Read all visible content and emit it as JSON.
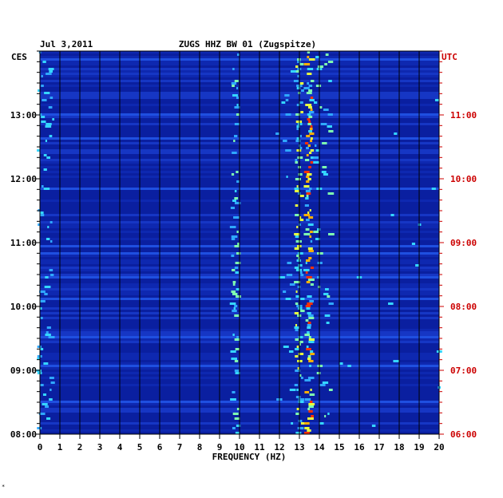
{
  "chart_data": {
    "type": "heatmap",
    "title_date": "Jul 3,2011",
    "title_station": "ZUGS HHZ BW 01 (Zugspitze)",
    "left_axis_label": "CES",
    "right_axis_label": "UTC",
    "xlabel": "FREQUENCY (HZ)",
    "xlim": [
      0,
      20
    ],
    "x_ticks": [
      "0",
      "1",
      "2",
      "3",
      "4",
      "5",
      "6",
      "7",
      "8",
      "9",
      "10",
      "11",
      "12",
      "13",
      "14",
      "15",
      "16",
      "17",
      "18",
      "19",
      "20"
    ],
    "left_time_ticks": [
      "13:00",
      "12:00",
      "11:00",
      "10:00",
      "09:00",
      "08:00"
    ],
    "right_time_ticks": [
      "11:00",
      "10:00",
      "09:00",
      "08:00",
      "07:00",
      "06:00"
    ],
    "time_range_hours": [
      8.0,
      14.0
    ],
    "grid": true,
    "colors": {
      "background": "#0a1fa0",
      "grid": "#000000",
      "left_labels": "#000000",
      "right_labels": "#cc0000"
    },
    "dominant_frequencies_hz": [
      9.8,
      13.0,
      13.5
    ],
    "footnote": "*"
  }
}
